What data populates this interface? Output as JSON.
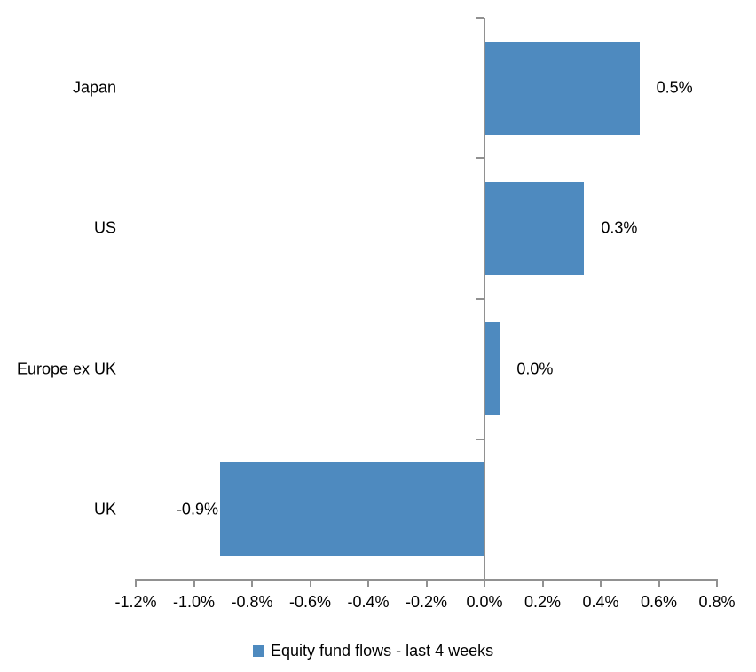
{
  "chart_data": {
    "type": "bar",
    "orientation": "horizontal",
    "title": "",
    "xlabel": "",
    "ylabel": "",
    "grid": false,
    "categories": [
      "Japan",
      "US",
      "Europe ex UK",
      "UK"
    ],
    "series": [
      {
        "name": "Equity fund flows - last 4 weeks",
        "values": [
          0.53,
          0.34,
          0.05,
          -0.91
        ],
        "labels": [
          "0.5%",
          "0.3%",
          "0.0%",
          "-0.9%"
        ]
      }
    ],
    "x_axis": {
      "min": -1.2,
      "max": 0.8,
      "step": 0.2,
      "unit": "%",
      "tick_labels": [
        "-1.2%",
        "-1.0%",
        "-0.8%",
        "-0.6%",
        "-0.4%",
        "-0.2%",
        "0.0%",
        "0.2%",
        "0.4%",
        "0.6%",
        "0.8%"
      ]
    },
    "legend": {
      "position": "bottom",
      "entries": [
        "Equity fund flows - last 4 weeks"
      ]
    },
    "colors": {
      "bar": "#4E8ABF",
      "axis": "#919191",
      "text": "#000000",
      "background": "#FFFFFF"
    }
  }
}
